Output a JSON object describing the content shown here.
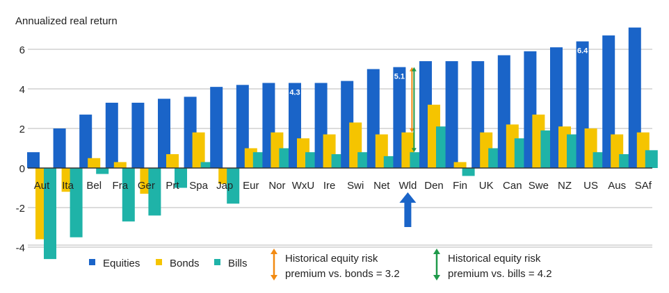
{
  "colors": {
    "equities": "#1a64c8",
    "bonds": "#f5c400",
    "bills": "#1fb3a8",
    "orange": "#f28a12",
    "green": "#1f9a4a",
    "gridline": "#b8b8b8",
    "zero_line": "#333333",
    "highlight_arrow": "#1a64c8"
  },
  "chart_data": {
    "type": "bar",
    "ylabel": "Annualized  real return",
    "ylim": [
      -5,
      7
    ],
    "yticks": [
      -4,
      -2,
      0,
      2,
      4,
      6
    ],
    "categories": [
      "Aut",
      "Ita",
      "Bel",
      "Fra",
      "Ger",
      "Prt",
      "Spa",
      "Jap",
      "Eur",
      "Nor",
      "WxU",
      "Ire",
      "Swi",
      "Net",
      "Wld",
      "Den",
      "Fin",
      "UK",
      "Can",
      "Swe",
      "NZ",
      "US",
      "Aus",
      "SAf"
    ],
    "series": [
      {
        "name": "Equities",
        "color_key": "equities",
        "values": [
          0.8,
          2.0,
          2.7,
          3.3,
          3.3,
          3.5,
          3.6,
          4.1,
          4.2,
          4.3,
          4.3,
          4.3,
          4.4,
          5.0,
          5.1,
          5.4,
          5.4,
          5.4,
          5.7,
          5.9,
          6.1,
          6.4,
          6.7,
          7.1
        ]
      },
      {
        "name": "Bonds",
        "color_key": "bonds",
        "values": [
          -3.6,
          -1.2,
          0.5,
          0.3,
          -1.3,
          0.7,
          1.8,
          -0.8,
          1.0,
          1.8,
          1.5,
          1.7,
          2.3,
          1.7,
          1.8,
          3.2,
          0.3,
          1.8,
          2.2,
          2.7,
          2.1,
          2.0,
          1.7,
          1.8
        ]
      },
      {
        "name": "Bills",
        "color_key": "bills",
        "values": [
          -4.6,
          -3.5,
          -0.3,
          -2.7,
          -2.4,
          -1.0,
          0.3,
          -1.8,
          0.8,
          1.0,
          0.8,
          0.7,
          0.8,
          0.6,
          0.8,
          2.1,
          -0.4,
          1.0,
          1.5,
          1.9,
          1.7,
          0.8,
          0.7,
          0.9
        ]
      }
    ],
    "data_labels": [
      {
        "category": "WxU",
        "text": "4.3"
      },
      {
        "category": "Wld",
        "text": "5.1"
      },
      {
        "category": "US",
        "text": "6.4"
      }
    ],
    "annotations": {
      "highlight_category": "Wld",
      "premium_vs_bonds": {
        "from": 1.8,
        "to": 5.1
      },
      "premium_vs_bills": {
        "from": 0.8,
        "to": 5.1
      }
    }
  },
  "legend": {
    "equities": "Equities",
    "bonds": "Bonds",
    "bills": "Bills",
    "note_bonds_line1": "Historical equity risk",
    "note_bonds_line2": "premium vs. bonds = 3.2",
    "note_bills_line1": "Historical equity risk",
    "note_bills_line2": "premium vs. bills = 4.2"
  }
}
